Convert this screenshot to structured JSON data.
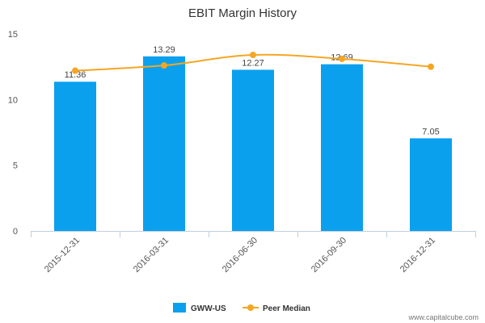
{
  "chart_data": {
    "type": "bar",
    "title": "EBIT Margin History",
    "categories": [
      "2015-12-31",
      "2016-03-31",
      "2016-06-30",
      "2016-09-30",
      "2016-12-31"
    ],
    "series": [
      {
        "name": "GWW-US",
        "type": "bar",
        "values": [
          11.36,
          13.29,
          12.27,
          12.69,
          7.05
        ],
        "labels": [
          "11.36",
          "13.29",
          "12.27",
          "12.69",
          "7.05"
        ],
        "color": "#0aa0ee"
      },
      {
        "name": "Peer Median",
        "type": "line",
        "values": [
          12.2,
          12.6,
          13.4,
          13.1,
          12.5
        ],
        "color": "#f5a623"
      }
    ],
    "ylim": [
      0,
      15
    ],
    "yticks": [
      "0",
      "5",
      "10",
      "15"
    ],
    "ytick_values": [
      0,
      5,
      10,
      15
    ],
    "grid": false,
    "legend": "bottom-center",
    "xlabel_rotation": "-45deg"
  },
  "watermark": "www.capitalcube.com"
}
